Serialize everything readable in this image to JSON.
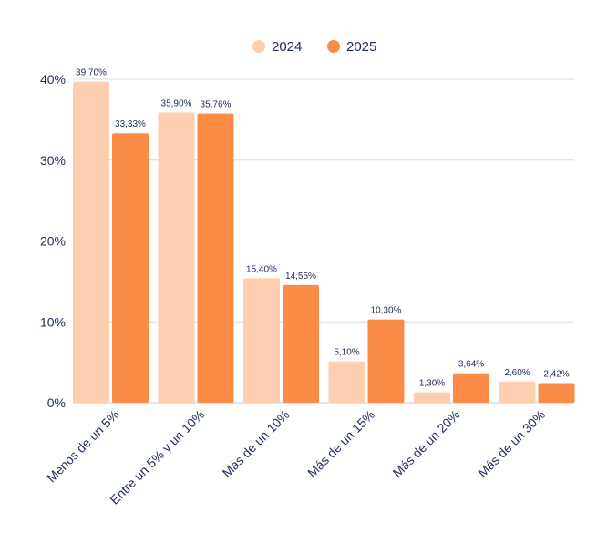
{
  "chart_data": {
    "type": "bar",
    "categories": [
      "Menos de un 5%",
      "Entre un 5% y un 10%",
      "Más de un 10%",
      "Más de un 15%",
      "Más de un 20%",
      "Más de un 30%"
    ],
    "series": [
      {
        "name": "2024",
        "color": "#fdcfb0",
        "values": [
          39.7,
          35.9,
          15.4,
          5.1,
          1.3,
          2.6
        ],
        "labels": [
          "39,70%",
          "35,90%",
          "15,40%",
          "5,10%",
          "1,30%",
          "2,60%"
        ]
      },
      {
        "name": "2025",
        "color": "#fb8c47",
        "values": [
          33.33,
          35.76,
          14.55,
          10.3,
          3.64,
          2.42
        ],
        "labels": [
          "33,33%",
          "35,76%",
          "14,55%",
          "10,30%",
          "3,64%",
          "2,42%"
        ]
      }
    ],
    "yticks": [
      0,
      10,
      20,
      30,
      40
    ],
    "ytick_labels": [
      "0%",
      "10%",
      "20%",
      "30%",
      "40%"
    ],
    "ylim": [
      0,
      40
    ],
    "grid": true,
    "legend_position": "top-center",
    "title": "",
    "xlabel": "",
    "ylabel": ""
  }
}
